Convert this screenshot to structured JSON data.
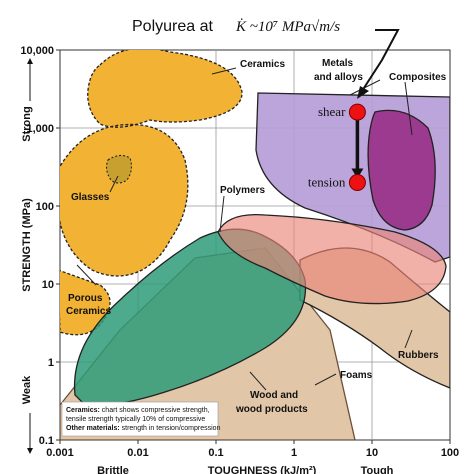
{
  "chart_data": {
    "type": "scatter",
    "title": "",
    "xlabel": "TOUGHNESS (kJ/m²)",
    "ylabel": "STRENGTH (MPa)",
    "x_scale": "log",
    "y_scale": "log",
    "xlim": [
      0.001,
      100
    ],
    "ylim": [
      0.1,
      10000
    ],
    "x_ticks": [
      "0.001",
      "0.01",
      "0.1",
      "1",
      "10",
      "100"
    ],
    "y_ticks": [
      "0.1",
      "1",
      "10",
      "100",
      "1,000",
      "10,000"
    ],
    "grid": true,
    "x_end_labels": [
      "Brittle",
      "Tough"
    ],
    "y_end_labels": [
      "Weak",
      "Strong"
    ],
    "region_labels": [
      {
        "text": "Ceramics"
      },
      {
        "text": "Glasses"
      },
      {
        "text": "Porous"
      },
      {
        "text": "Ceramics"
      },
      {
        "text": "Metals"
      },
      {
        "text": "and alloys"
      },
      {
        "text": "Composites"
      },
      {
        "text": "Polymers"
      },
      {
        "text": "Rubbers"
      },
      {
        "text": "Foams"
      },
      {
        "text": "Wood and"
      },
      {
        "text": "wood products"
      }
    ],
    "annotation_title": {
      "prefix": "Polyurea at ",
      "formula": "K̇ ~10⁷ MPa√m/s"
    },
    "points": [
      {
        "name": "shear",
        "x": 6.5,
        "y": 1600
      },
      {
        "name": "tension",
        "x": 6.5,
        "y": 200
      }
    ],
    "note": {
      "line1_bold": "Ceramics:",
      "line1_rest": " chart shows compressive strength,",
      "line2": "tensile strength typically 10% of compressive",
      "line3_bold": "Other materials:",
      "line3_rest": " strength in tension/compression"
    },
    "colors": {
      "ceramics": "#f2b233",
      "metals": "#b49bd6",
      "composites": "#9b3a8e",
      "polymers": "#e9857a",
      "wood": "#2e9b78",
      "foams": "#e2c6a8",
      "point": "#ee1111"
    }
  }
}
